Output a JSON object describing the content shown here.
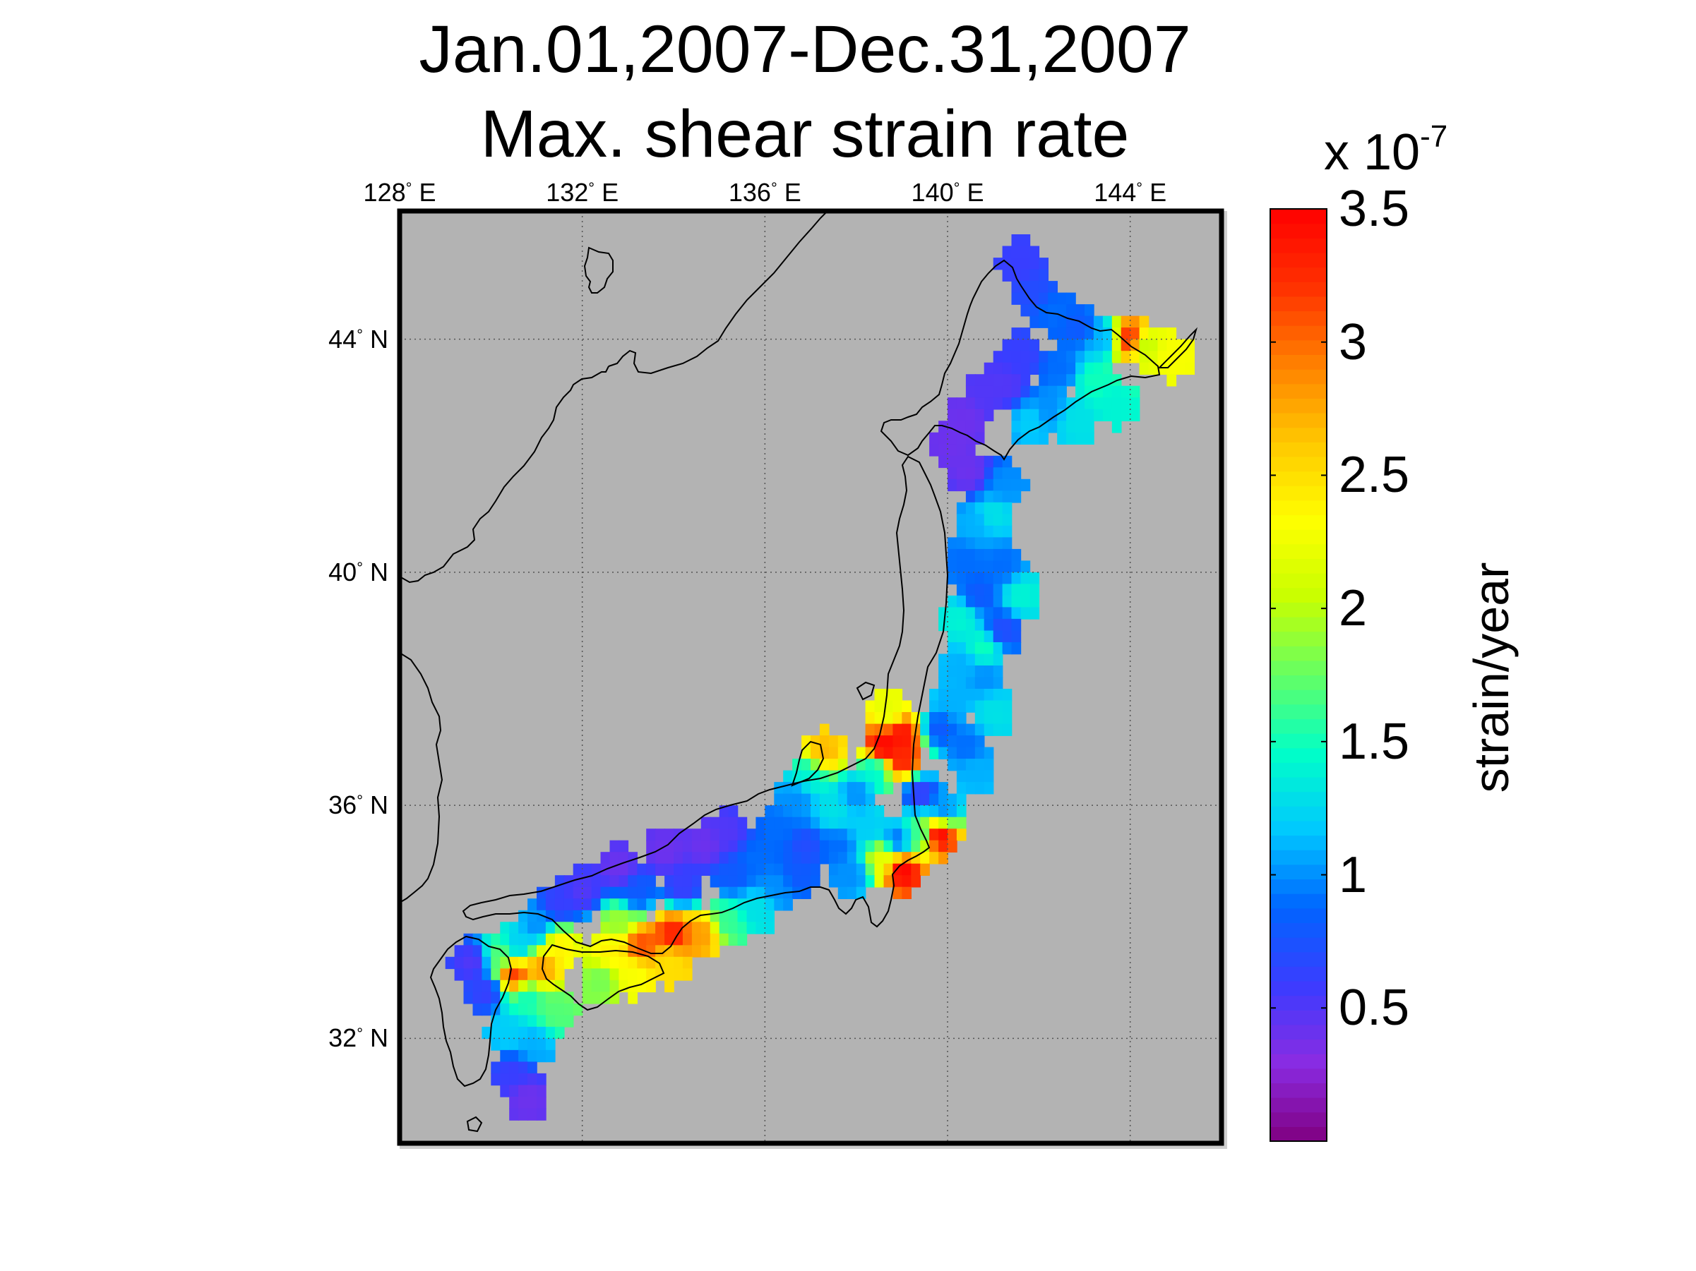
{
  "map_title": {
    "line1": "Jan.01,2007-Dec.31,2007",
    "line2": "Max. shear strain rate"
  },
  "map": {
    "region": "Japan",
    "background_color": "#b3b3b3",
    "coastline_color": "#000000",
    "grid": true,
    "longitude_ticks": [
      {
        "value": 128,
        "label": "128",
        "hemi": "E"
      },
      {
        "value": 132,
        "label": "132",
        "hemi": "E"
      },
      {
        "value": 136,
        "label": "136",
        "hemi": "E"
      },
      {
        "value": 140,
        "label": "140",
        "hemi": "E"
      },
      {
        "value": 144,
        "label": "144",
        "hemi": "E"
      }
    ],
    "latitude_ticks": [
      {
        "value": 44,
        "label": "44",
        "hemi": "N"
      },
      {
        "value": 40,
        "label": "40",
        "hemi": "N"
      },
      {
        "value": 36,
        "label": "36",
        "hemi": "N"
      },
      {
        "value": 32,
        "label": "32",
        "hemi": "N"
      }
    ],
    "lon_range": [
      128,
      146
    ],
    "lat_range": [
      30.2,
      46.2
    ],
    "strain_regions": [
      {
        "name": "Hokkaido",
        "dominant_value": 0.7,
        "peak_value": 3.3
      },
      {
        "name": "Tohoku",
        "dominant_value": 0.9,
        "peak_value": 1.7
      },
      {
        "name": "Niigata",
        "dominant_value": 1.2,
        "peak_value": 3.5
      },
      {
        "name": "Izu / Kanto",
        "dominant_value": 1.0,
        "peak_value": 3.5
      },
      {
        "name": "Chubu / Kinki",
        "dominant_value": 0.8,
        "peak_value": 1.8
      },
      {
        "name": "Chugoku",
        "dominant_value": 0.45,
        "peak_value": 0.9
      },
      {
        "name": "Shikoku",
        "dominant_value": 2.4,
        "peak_value": 3.3
      },
      {
        "name": "Kyushu",
        "dominant_value": 1.3,
        "peak_value": 3.2
      }
    ]
  },
  "colorbar": {
    "exponent_prefix": "x 10",
    "exponent": "-7",
    "label": "strain/year",
    "min": 0,
    "max": 3.5,
    "ticks": [
      {
        "value": 0.5,
        "label": "0.5"
      },
      {
        "value": 1,
        "label": "1"
      },
      {
        "value": 1.5,
        "label": "1.5"
      },
      {
        "value": 2,
        "label": "2"
      },
      {
        "value": 2.5,
        "label": "2.5"
      },
      {
        "value": 3,
        "label": "3"
      },
      {
        "value": 3.5,
        "label": "3.5"
      }
    ],
    "colormap": [
      "#800080",
      "#8a2be2",
      "#3c3cff",
      "#0064ff",
      "#00c8ff",
      "#00ffc8",
      "#64ff64",
      "#c8ff00",
      "#ffff00",
      "#ffc800",
      "#ff8000",
      "#ff3000",
      "#ff0000"
    ]
  }
}
